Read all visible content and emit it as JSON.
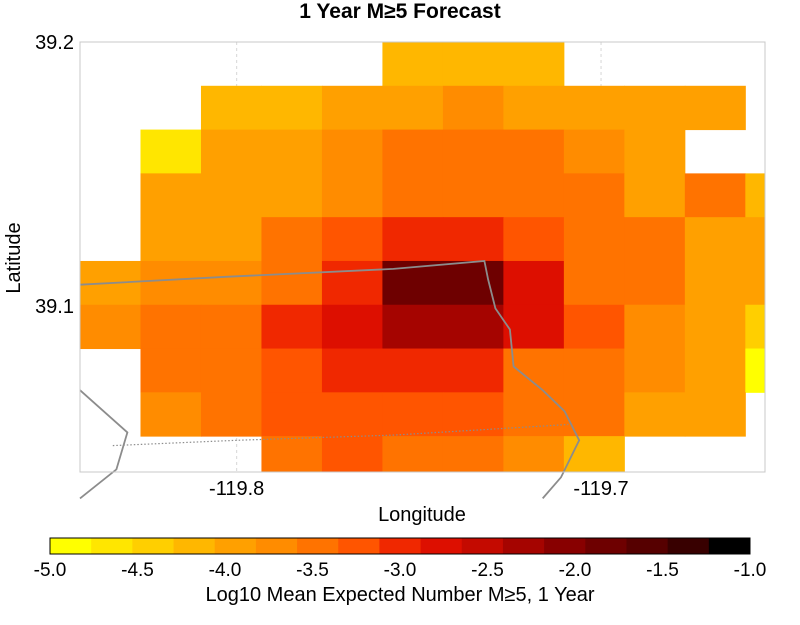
{
  "chart_data": {
    "type": "heatmap",
    "title": "1 Year M≥5 Forecast",
    "xlabel": "Longitude",
    "ylabel": "Latitude",
    "xlim": [
      -119.843,
      -119.655
    ],
    "ylim": [
      39.037,
      39.2
    ],
    "x_ticks": [
      {
        "value": -119.8,
        "label": "-119.8"
      },
      {
        "value": -119.7,
        "label": "-119.7"
      }
    ],
    "y_ticks": [
      {
        "value": 39.1,
        "label": "39.1"
      },
      {
        "value": 39.2,
        "label": "39.2"
      }
    ],
    "grid": true,
    "cell_size": 0.0166,
    "x_start": -119.843,
    "y_top": 39.2,
    "rows": [
      [
        null,
        null,
        null,
        null,
        null,
        -4.2,
        -4.2,
        -4.2,
        null,
        null,
        null,
        null
      ],
      [
        null,
        null,
        -4.2,
        -4.2,
        -3.8,
        -3.8,
        -3.6,
        -3.8,
        -4.0,
        -4.0,
        -4.0,
        null
      ],
      [
        null,
        -4.7,
        -3.8,
        -3.8,
        -3.6,
        -3.4,
        -3.3,
        -3.4,
        -3.6,
        -3.8,
        null,
        null
      ],
      [
        null,
        -3.8,
        -3.8,
        -3.8,
        -3.6,
        -3.3,
        -3.3,
        -3.3,
        -3.3,
        -3.8,
        -3.4,
        -4.2
      ],
      [
        null,
        -3.8,
        -3.8,
        -3.3,
        -3.1,
        -2.8,
        -2.8,
        -3.1,
        -3.3,
        -3.4,
        -3.8,
        -4.0
      ],
      [
        -4.0,
        -3.6,
        -3.6,
        -3.3,
        -2.8,
        -1.6,
        -1.6,
        -2.6,
        -3.3,
        -3.3,
        -3.8,
        -4.0
      ],
      [
        -3.6,
        -3.3,
        -3.3,
        -2.8,
        -2.6,
        -2.1,
        -2.1,
        -2.6,
        -3.1,
        -3.6,
        -3.8,
        -4.4
      ],
      [
        null,
        -3.3,
        -3.3,
        -3.1,
        -2.8,
        -2.8,
        -2.8,
        -3.3,
        -3.3,
        -3.6,
        -3.8,
        -4.8
      ],
      [
        null,
        -3.6,
        -3.3,
        -3.1,
        -3.1,
        -3.1,
        -3.1,
        -3.3,
        -3.3,
        -4.0,
        -4.0,
        null
      ],
      [
        null,
        null,
        null,
        -3.4,
        -3.1,
        -3.3,
        -3.3,
        -3.6,
        -4.2,
        null,
        null,
        null
      ]
    ],
    "colorbar": {
      "label": "Log10 Mean Expected Number M≥5, 1 Year",
      "min": -5.0,
      "max": -1.0,
      "step": 0.25,
      "tick_labels": [
        "-5.0",
        "-4.5",
        "-4.0",
        "-3.5",
        "-3.0",
        "-2.5",
        "-2.0",
        "-1.5",
        "-1.0"
      ],
      "colors": [
        "#ffff00",
        "#ffe600",
        "#ffcf00",
        "#ffb700",
        "#ffa000",
        "#ff8c00",
        "#ff7300",
        "#ff5500",
        "#f02800",
        "#dd0f00",
        "#c40a00",
        "#a50400",
        "#880000",
        "#6e0000",
        "#560000",
        "#380000",
        "#000000"
      ]
    },
    "boundary_lines": [
      {
        "style": "solid",
        "points": [
          [
            -119.843,
            39.108
          ],
          [
            -119.803,
            39.111
          ],
          [
            -119.757,
            39.114
          ],
          [
            -119.732,
            39.117
          ],
          [
            -119.731,
            39.11
          ],
          [
            -119.729,
            39.099
          ],
          [
            -119.725,
            39.091
          ],
          [
            -119.724,
            39.077
          ],
          [
            -119.716,
            39.068
          ],
          [
            -119.71,
            39.06
          ],
          [
            -119.706,
            39.049
          ],
          [
            -119.711,
            39.035
          ],
          [
            -119.716,
            39.027
          ]
        ]
      },
      {
        "style": "dotted",
        "points": [
          [
            -119.834,
            39.047
          ],
          [
            -119.8,
            39.049
          ],
          [
            -119.757,
            39.051
          ],
          [
            -119.709,
            39.055
          ]
        ]
      },
      {
        "style": "solid",
        "points": [
          [
            -119.843,
            39.068
          ],
          [
            -119.83,
            39.052
          ],
          [
            -119.833,
            39.038
          ],
          [
            -119.843,
            39.027
          ]
        ]
      }
    ]
  }
}
